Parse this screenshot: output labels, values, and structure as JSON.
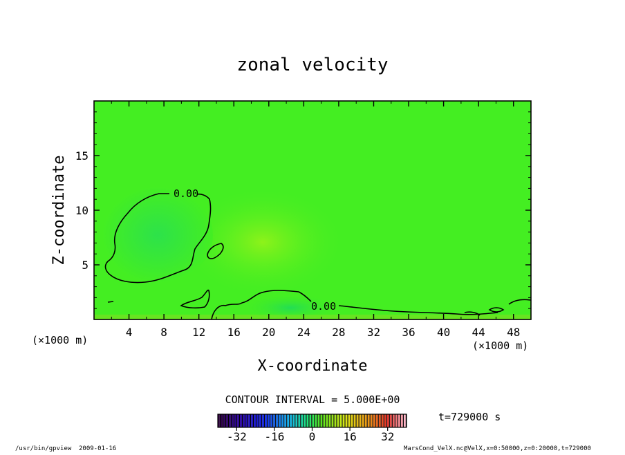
{
  "chart_data": {
    "type": "heatmap",
    "title": "zonal velocity",
    "xlabel": "X-coordinate",
    "ylabel": "Z-coordinate",
    "x_unit": "(×1000 m)",
    "y_unit": "(×1000 m)",
    "xlim": [
      0,
      50
    ],
    "ylim": [
      0,
      20
    ],
    "x_ticks": [
      "4",
      "8",
      "12",
      "16",
      "20",
      "24",
      "28",
      "32",
      "36",
      "40",
      "44",
      "48"
    ],
    "y_ticks": [
      "5",
      "10",
      "15"
    ],
    "contour_labels": [
      "0.00",
      "0.00"
    ],
    "contour_interval_text": "CONTOUR INTERVAL = 5.000E+00",
    "time_text": "t=729000 s",
    "colorbar": {
      "min": -40,
      "max": 40,
      "tick_labels": [
        "-32",
        "-16",
        "0",
        "16",
        "32"
      ]
    },
    "background_color": "#44ee22",
    "negative_region_color": "#33e244",
    "positive_region_color": "#80f21a"
  },
  "footer": {
    "left_program": "/usr/bin/gpview",
    "left_date": "2009-01-16",
    "right_source": "MarsCond_VelX.nc@VelX,x=0:50000,z=0:20000,t=729000"
  }
}
